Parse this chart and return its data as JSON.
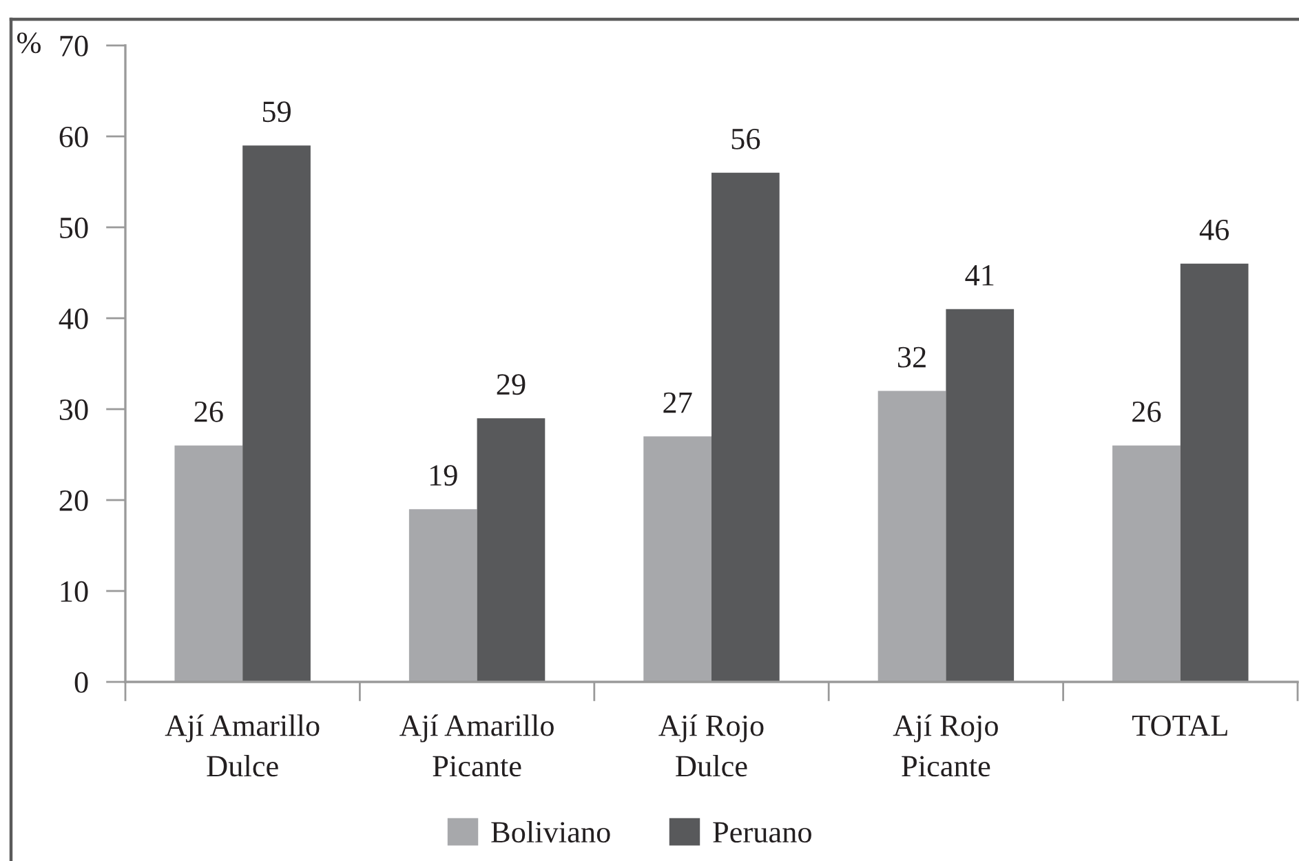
{
  "chart_data": {
    "type": "bar",
    "ylabel": "%",
    "categories": [
      "Ají Amarillo\nDulce",
      "Ají Amarillo\nPicante",
      "Ají Rojo\nDulce",
      "Ají Rojo\nPicante",
      "TOTAL"
    ],
    "series": [
      {
        "name": "Boliviano",
        "color": "#a7a8ab",
        "values": [
          26,
          19,
          27,
          32,
          26
        ]
      },
      {
        "name": "Peruano",
        "color": "#58595b",
        "values": [
          59,
          29,
          56,
          41,
          46
        ]
      }
    ],
    "ylim": [
      0,
      70
    ],
    "yticks": [
      0,
      10,
      20,
      30,
      40,
      50,
      60,
      70
    ],
    "data_labels": true,
    "legend": "bottom"
  }
}
